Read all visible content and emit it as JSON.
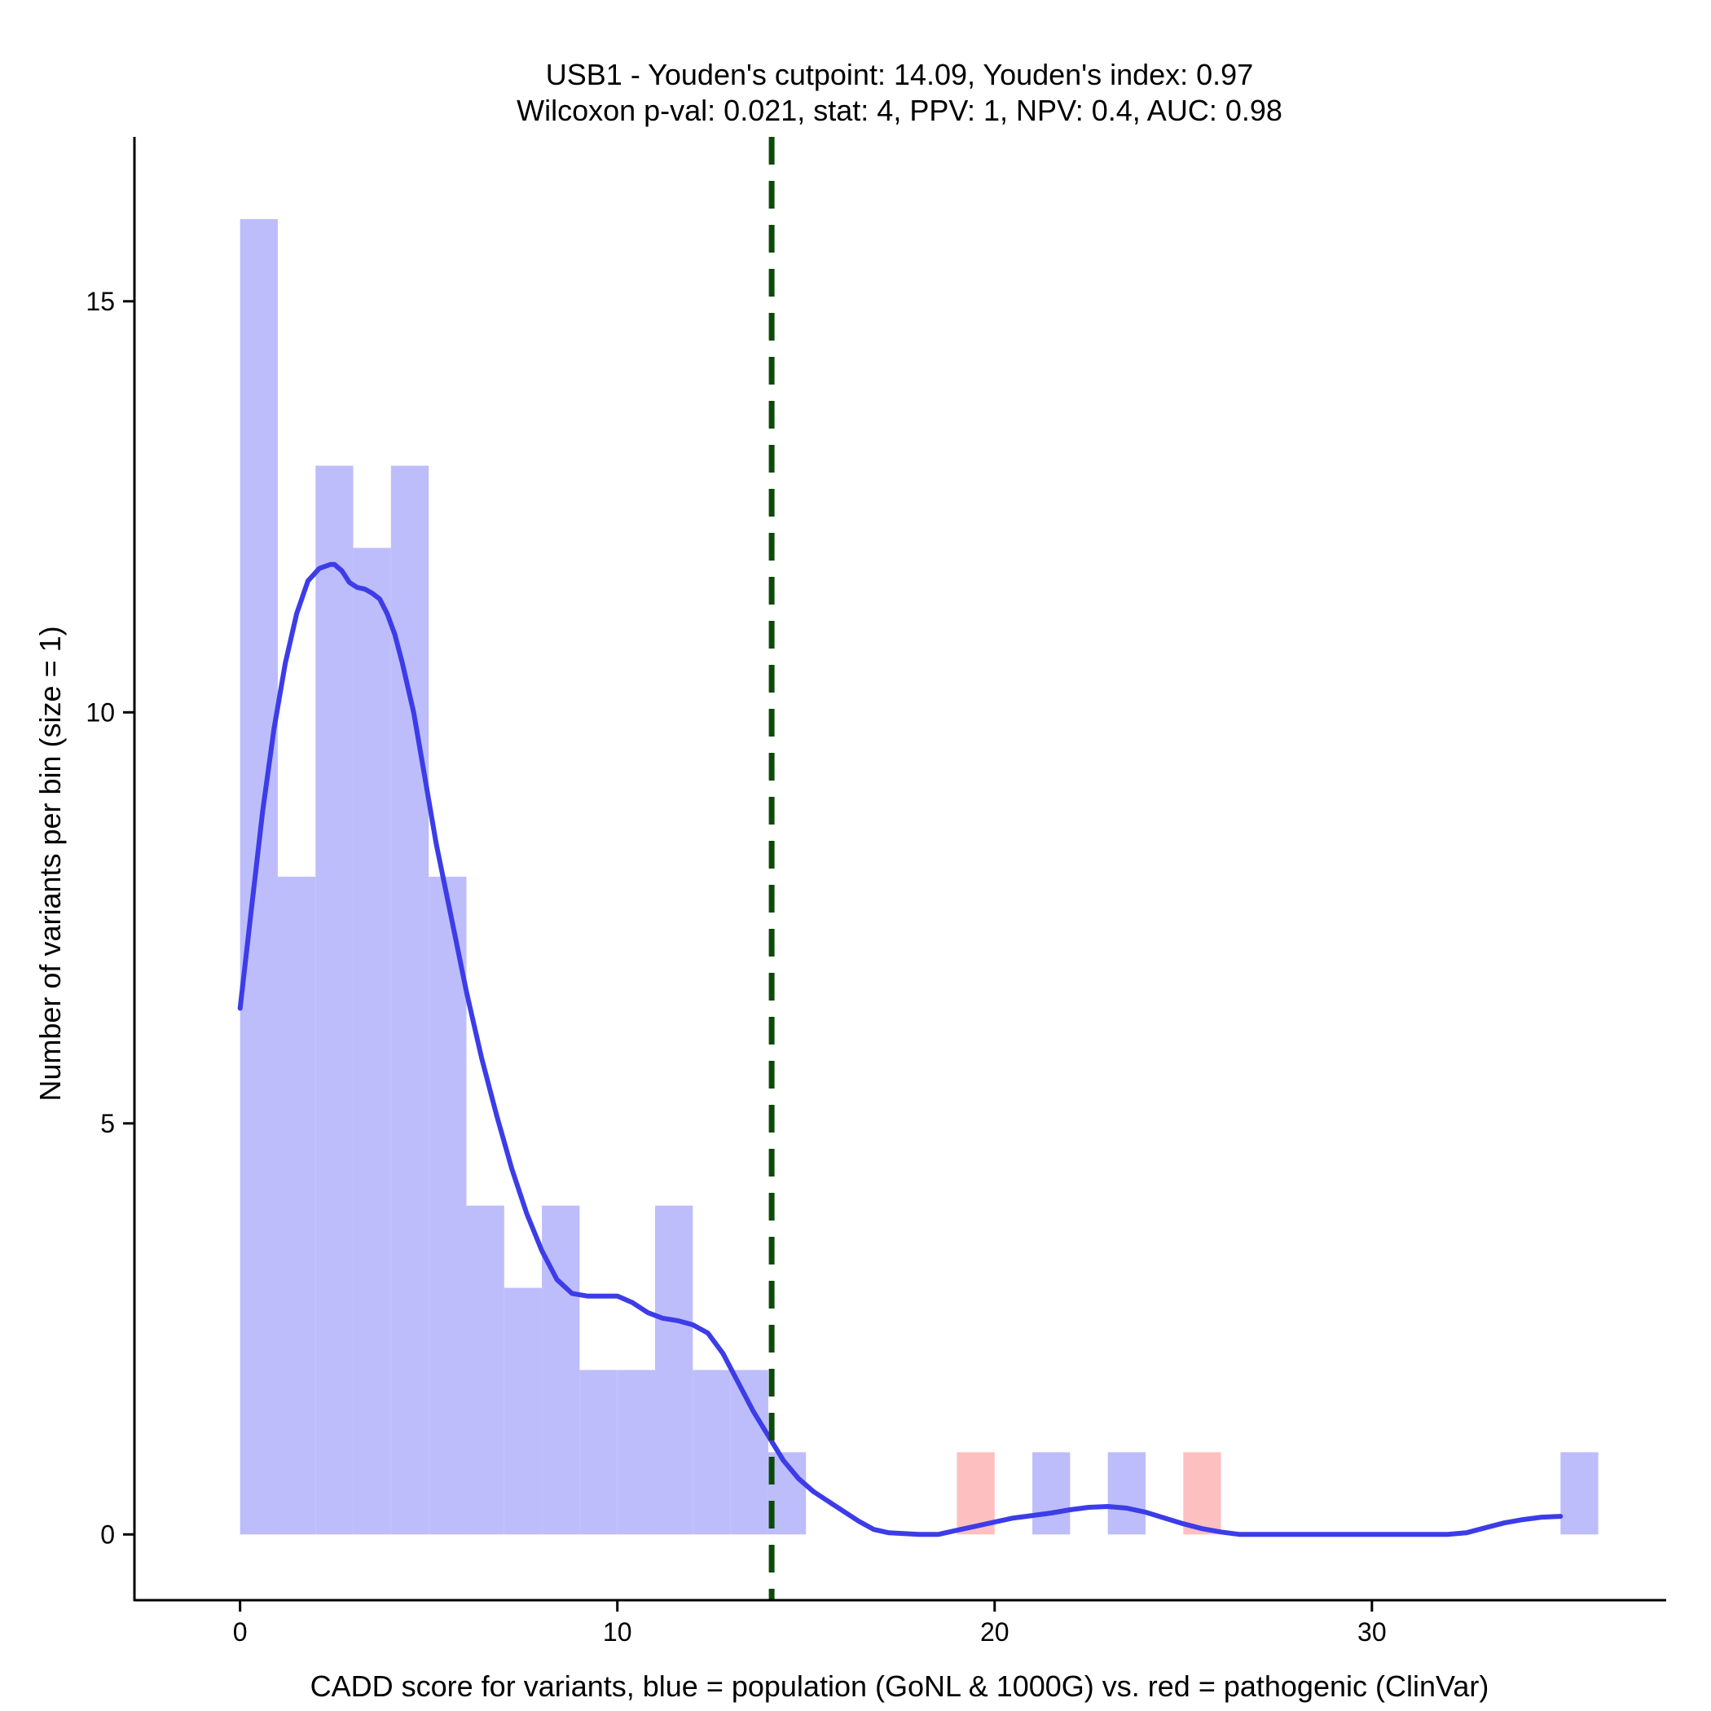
{
  "chart_data": {
    "type": "bar",
    "title_lines": [
      "USB1 - Youden's cutpoint: 14.09, Youden's index: 0.97",
      "Wilcoxon p-val: 0.021, stat: 4, PPV: 1, NPV: 0.4, AUC: 0.98"
    ],
    "xlabel": "CADD score for variants, blue = population (GoNL & 1000G) vs. red = pathogenic (ClinVar)",
    "ylabel": "Number of variants per bin (size = 1)",
    "xlim": [
      -2.8,
      37.8
    ],
    "ylim": [
      -0.8,
      17.0
    ],
    "x_ticks": [
      0,
      10,
      20,
      30
    ],
    "y_ticks": [
      0,
      5,
      10,
      15
    ],
    "bin_size": 1,
    "series": [
      {
        "name": "population (GoNL & 1000G)",
        "color": "#bdbdfb",
        "bins": [
          {
            "x0": 0,
            "x1": 1,
            "count": 16
          },
          {
            "x0": 1,
            "x1": 2,
            "count": 8
          },
          {
            "x0": 2,
            "x1": 3,
            "count": 13
          },
          {
            "x0": 3,
            "x1": 4,
            "count": 12
          },
          {
            "x0": 4,
            "x1": 5,
            "count": 13
          },
          {
            "x0": 5,
            "x1": 6,
            "count": 8
          },
          {
            "x0": 6,
            "x1": 7,
            "count": 4
          },
          {
            "x0": 7,
            "x1": 8,
            "count": 3
          },
          {
            "x0": 8,
            "x1": 9,
            "count": 4
          },
          {
            "x0": 9,
            "x1": 10,
            "count": 2
          },
          {
            "x0": 10,
            "x1": 11,
            "count": 2
          },
          {
            "x0": 11,
            "x1": 12,
            "count": 4
          },
          {
            "x0": 12,
            "x1": 13,
            "count": 2
          },
          {
            "x0": 13,
            "x1": 14,
            "count": 2
          },
          {
            "x0": 14,
            "x1": 15,
            "count": 1
          },
          {
            "x0": 21,
            "x1": 22,
            "count": 1
          },
          {
            "x0": 23,
            "x1": 24,
            "count": 1
          },
          {
            "x0": 35,
            "x1": 36,
            "count": 1
          }
        ]
      },
      {
        "name": "pathogenic (ClinVar)",
        "color": "#fdbfbf",
        "bins": [
          {
            "x0": 19,
            "x1": 20,
            "count": 1
          },
          {
            "x0": 25,
            "x1": 26,
            "count": 1
          }
        ]
      }
    ],
    "density_line": {
      "color": "#3c3ce8",
      "points": [
        [
          0.0,
          6.4
        ],
        [
          0.3,
          7.6
        ],
        [
          0.6,
          8.8
        ],
        [
          0.9,
          9.8
        ],
        [
          1.2,
          10.6
        ],
        [
          1.5,
          11.2
        ],
        [
          1.8,
          11.6
        ],
        [
          2.1,
          11.75
        ],
        [
          2.4,
          11.8
        ],
        [
          2.5,
          11.8
        ],
        [
          2.7,
          11.72
        ],
        [
          2.9,
          11.58
        ],
        [
          3.1,
          11.52
        ],
        [
          3.3,
          11.5
        ],
        [
          3.5,
          11.45
        ],
        [
          3.7,
          11.38
        ],
        [
          3.9,
          11.2
        ],
        [
          4.1,
          10.95
        ],
        [
          4.3,
          10.6
        ],
        [
          4.6,
          10.0
        ],
        [
          4.9,
          9.2
        ],
        [
          5.2,
          8.4
        ],
        [
          5.6,
          7.5
        ],
        [
          6.0,
          6.6
        ],
        [
          6.4,
          5.8
        ],
        [
          6.8,
          5.1
        ],
        [
          7.2,
          4.45
        ],
        [
          7.6,
          3.9
        ],
        [
          8.0,
          3.45
        ],
        [
          8.4,
          3.1
        ],
        [
          8.8,
          2.93
        ],
        [
          9.2,
          2.9
        ],
        [
          9.6,
          2.9
        ],
        [
          10.0,
          2.9
        ],
        [
          10.4,
          2.82
        ],
        [
          10.8,
          2.7
        ],
        [
          11.2,
          2.63
        ],
        [
          11.6,
          2.6
        ],
        [
          12.0,
          2.55
        ],
        [
          12.4,
          2.45
        ],
        [
          12.8,
          2.2
        ],
        [
          13.2,
          1.85
        ],
        [
          13.6,
          1.5
        ],
        [
          14.0,
          1.2
        ],
        [
          14.4,
          0.9
        ],
        [
          14.8,
          0.68
        ],
        [
          15.2,
          0.52
        ],
        [
          15.6,
          0.4
        ],
        [
          16.0,
          0.28
        ],
        [
          16.4,
          0.16
        ],
        [
          16.8,
          0.06
        ],
        [
          17.2,
          0.02
        ],
        [
          17.6,
          0.01
        ],
        [
          18.0,
          0.0
        ],
        [
          18.5,
          0.0
        ],
        [
          19.0,
          0.05
        ],
        [
          19.5,
          0.1
        ],
        [
          20.0,
          0.15
        ],
        [
          20.5,
          0.2
        ],
        [
          21.0,
          0.23
        ],
        [
          21.5,
          0.26
        ],
        [
          22.0,
          0.3
        ],
        [
          22.5,
          0.33
        ],
        [
          23.0,
          0.34
        ],
        [
          23.5,
          0.32
        ],
        [
          24.0,
          0.27
        ],
        [
          24.5,
          0.2
        ],
        [
          25.0,
          0.13
        ],
        [
          25.5,
          0.07
        ],
        [
          26.0,
          0.03
        ],
        [
          26.5,
          0.0
        ],
        [
          27.0,
          0.0
        ],
        [
          28.0,
          0.0
        ],
        [
          29.0,
          0.0
        ],
        [
          30.0,
          0.0
        ],
        [
          31.0,
          0.0
        ],
        [
          32.0,
          0.0
        ],
        [
          32.5,
          0.02
        ],
        [
          33.0,
          0.08
        ],
        [
          33.5,
          0.14
        ],
        [
          34.0,
          0.18
        ],
        [
          34.5,
          0.21
        ],
        [
          35.0,
          0.22
        ]
      ]
    },
    "cutpoint_line": {
      "x": 14.09,
      "color": "#0c4a0c",
      "style": "dashed"
    },
    "grid": false,
    "legend": "none"
  }
}
